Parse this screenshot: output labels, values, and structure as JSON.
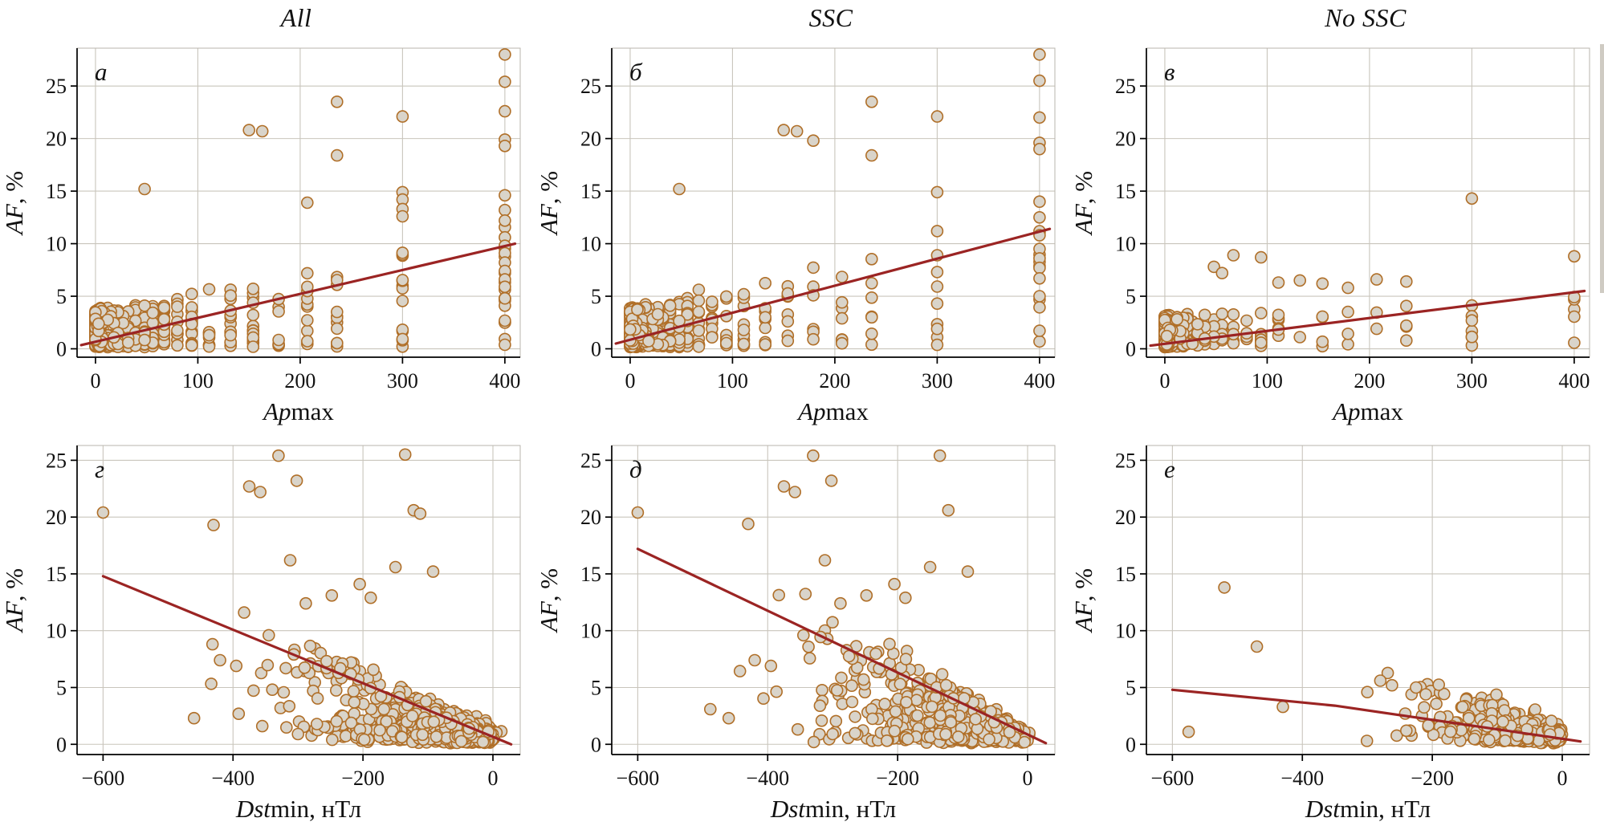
{
  "figure": {
    "col_titles": [
      "All",
      "SSC",
      "No SSC"
    ],
    "colors": {
      "marker_fill": "#d9d4ca",
      "marker_stroke": "#b06f28",
      "line": "#9b2423",
      "grid": "#c9c5bc",
      "frame": "#b9b5ad",
      "axis": "#000000"
    }
  },
  "chart_data": [
    {
      "type": "scatter",
      "panel_label": "а",
      "group": "All",
      "xlabel": "Apmax",
      "ylabel": "AF, %",
      "xlabel_parts": [
        {
          "text": "Ap",
          "italic": true
        },
        {
          "text": "max",
          "italic": false
        }
      ],
      "ylabel_parts": [
        {
          "text": "AF",
          "italic": true
        },
        {
          "text": ", %",
          "italic": false
        }
      ],
      "xlim": [
        -18,
        415
      ],
      "ylim": [
        -0.8,
        28.6
      ],
      "xticks": {
        "values": [
          0,
          100,
          200,
          300,
          400
        ],
        "labels": [
          "0",
          "100",
          "200",
          "300",
          "400"
        ]
      },
      "yticks": {
        "values": [
          0,
          5,
          10,
          15,
          20,
          25
        ],
        "labels": [
          "0",
          "5",
          "10",
          "15",
          "20",
          "25"
        ]
      },
      "grid": true,
      "regression": {
        "x": [
          -14,
          410
        ],
        "y": [
          0.35,
          10.0
        ]
      },
      "outlier_points": [
        [
          48,
          15.2
        ],
        [
          150,
          20.8
        ],
        [
          163,
          20.7
        ],
        [
          236,
          23.5
        ],
        [
          236,
          18.4
        ],
        [
          207,
          13.9
        ],
        [
          300,
          22.1
        ],
        [
          300,
          14.9
        ],
        [
          300,
          14.2
        ],
        [
          300,
          13.3
        ],
        [
          300,
          12.6
        ],
        [
          400,
          28.0
        ],
        [
          400,
          25.4
        ],
        [
          400,
          22.6
        ],
        [
          400,
          19.9
        ],
        [
          400,
          19.3
        ],
        [
          400,
          14.6
        ],
        [
          400,
          13.2
        ],
        [
          400,
          12.2
        ],
        [
          400,
          10.6
        ],
        [
          400,
          9.8
        ],
        [
          400,
          9.1
        ],
        [
          400,
          8.2
        ],
        [
          400,
          7.4
        ],
        [
          400,
          6.6
        ],
        [
          400,
          5.9
        ],
        [
          400,
          4.8
        ]
      ],
      "gen": {
        "kind": "ap",
        "seed": 101,
        "n": 700,
        "decay": 4.5,
        "floor": 0.185,
        "c0": 3.2,
        "c1": 0.021,
        "pow": 2.0,
        "noise": 0.3,
        "cap": 13.5,
        "xvals": [
          0,
          2,
          3,
          4,
          5,
          6,
          7,
          9,
          12,
          15,
          18,
          22,
          27,
          32,
          39,
          48,
          56,
          67,
          80,
          94,
          111,
          132,
          154,
          179,
          207,
          236,
          300,
          400
        ]
      }
    },
    {
      "type": "scatter",
      "panel_label": "б",
      "group": "SSC",
      "xlabel": "Apmax",
      "ylabel": "AF, %",
      "xlabel_parts": [
        {
          "text": "Ap",
          "italic": true
        },
        {
          "text": "max",
          "italic": false
        }
      ],
      "ylabel_parts": [
        {
          "text": "AF",
          "italic": true
        },
        {
          "text": ", %",
          "italic": false
        }
      ],
      "xlim": [
        -18,
        415
      ],
      "ylim": [
        -0.8,
        28.6
      ],
      "xticks": {
        "values": [
          0,
          100,
          200,
          300,
          400
        ],
        "labels": [
          "0",
          "100",
          "200",
          "300",
          "400"
        ]
      },
      "yticks": {
        "values": [
          0,
          5,
          10,
          15,
          20,
          25
        ],
        "labels": [
          "0",
          "5",
          "10",
          "15",
          "20",
          "25"
        ]
      },
      "grid": true,
      "regression": {
        "x": [
          -14,
          410
        ],
        "y": [
          0.5,
          11.4
        ]
      },
      "outlier_points": [
        [
          48,
          15.2
        ],
        [
          150,
          20.8
        ],
        [
          163,
          20.7
        ],
        [
          179,
          19.8
        ],
        [
          236,
          23.5
        ],
        [
          236,
          18.4
        ],
        [
          300,
          22.1
        ],
        [
          300,
          14.9
        ],
        [
          300,
          11.2
        ],
        [
          300,
          8.9
        ],
        [
          400,
          28.0
        ],
        [
          400,
          25.5
        ],
        [
          400,
          22.0
        ],
        [
          400,
          19.6
        ],
        [
          400,
          19.0
        ],
        [
          400,
          14.0
        ],
        [
          400,
          12.5
        ],
        [
          400,
          10.8
        ],
        [
          400,
          9.5
        ],
        [
          400,
          8.6
        ],
        [
          400,
          7.7
        ],
        [
          400,
          6.7
        ],
        [
          400,
          5.0
        ]
      ],
      "gen": {
        "kind": "ap",
        "seed": 202,
        "n": 560,
        "decay": 4.5,
        "floor": 0.2,
        "c0": 3.4,
        "c1": 0.023,
        "pow": 2.0,
        "noise": 0.3,
        "cap": 13.5,
        "xvals": [
          0,
          2,
          3,
          4,
          5,
          6,
          7,
          9,
          12,
          15,
          18,
          22,
          27,
          32,
          39,
          48,
          56,
          67,
          80,
          94,
          111,
          132,
          154,
          179,
          207,
          236,
          300,
          400
        ]
      }
    },
    {
      "type": "scatter",
      "panel_label": "в",
      "group": "No SSC",
      "xlabel": "Apmax",
      "ylabel": "AF, %",
      "xlabel_parts": [
        {
          "text": "Ap",
          "italic": true
        },
        {
          "text": "max",
          "italic": false
        }
      ],
      "ylabel_parts": [
        {
          "text": "AF",
          "italic": true
        },
        {
          "text": ", %",
          "italic": false
        }
      ],
      "xlim": [
        -18,
        415
      ],
      "ylim": [
        -0.8,
        28.6
      ],
      "xticks": {
        "values": [
          0,
          100,
          200,
          300,
          400
        ],
        "labels": [
          "0",
          "100",
          "200",
          "300",
          "400"
        ]
      },
      "yticks": {
        "values": [
          0,
          5,
          10,
          15,
          20,
          25
        ],
        "labels": [
          "0",
          "5",
          "10",
          "15",
          "20",
          "25"
        ]
      },
      "grid": true,
      "regression": {
        "x": [
          -14,
          410
        ],
        "y": [
          0.3,
          5.5
        ]
      },
      "outlier_points": [
        [
          300,
          14.3
        ],
        [
          400,
          8.8
        ],
        [
          94,
          8.7
        ],
        [
          67,
          8.9
        ],
        [
          48,
          7.8
        ],
        [
          56,
          7.2
        ],
        [
          132,
          6.5
        ],
        [
          111,
          6.3
        ],
        [
          154,
          6.2
        ],
        [
          179,
          5.8
        ],
        [
          207,
          6.6
        ],
        [
          236,
          6.4
        ],
        [
          300,
          3.1
        ],
        [
          300,
          2.7
        ],
        [
          236,
          2.2
        ],
        [
          207,
          1.9
        ]
      ],
      "gen": {
        "kind": "ap",
        "seed": 303,
        "n": 430,
        "decay": 4.0,
        "floor": 0.05,
        "c0": 2.6,
        "c1": 0.006,
        "pow": 1.9,
        "noise": 0.3,
        "cap": 7.0,
        "xvals": [
          0,
          2,
          3,
          4,
          5,
          6,
          7,
          9,
          12,
          15,
          18,
          22,
          27,
          32,
          39,
          48,
          56,
          67,
          80,
          94,
          111,
          132,
          154,
          179,
          207,
          236,
          300,
          400
        ]
      }
    },
    {
      "type": "scatter",
      "panel_label": "г",
      "group": "All",
      "xlabel": "Dstmin, нТл",
      "ylabel": "AF, %",
      "xlabel_parts": [
        {
          "text": "Dst",
          "italic": true
        },
        {
          "text": "min, нТл",
          "italic": false
        }
      ],
      "ylabel_parts": [
        {
          "text": "AF",
          "italic": true
        },
        {
          "text": ", %",
          "italic": false
        }
      ],
      "xlim": [
        -640,
        42
      ],
      "ylim": [
        -0.9,
        26.3
      ],
      "xticks": {
        "values": [
          -600,
          -400,
          -200,
          0
        ],
        "labels": [
          "−600",
          "−400",
          "−200",
          "0"
        ]
      },
      "yticks": {
        "values": [
          0,
          5,
          10,
          15,
          20,
          25
        ],
        "labels": [
          "0",
          "5",
          "10",
          "15",
          "20",
          "25"
        ]
      },
      "grid": true,
      "regression": {
        "x": [
          -600,
          28
        ],
        "y": [
          14.8,
          0.0
        ]
      },
      "outlier_points": [
        [
          -600,
          20.4
        ],
        [
          -430,
          19.3
        ],
        [
          -375,
          22.7
        ],
        [
          -358,
          22.2
        ],
        [
          -330,
          25.4
        ],
        [
          -302,
          23.2
        ],
        [
          -135,
          25.5
        ],
        [
          -122,
          20.6
        ],
        [
          -112,
          20.3
        ],
        [
          -150,
          15.6
        ],
        [
          -92,
          15.2
        ],
        [
          -248,
          13.1
        ],
        [
          -312,
          16.2
        ],
        [
          -288,
          12.4
        ],
        [
          -205,
          14.1
        ],
        [
          -188,
          12.9
        ],
        [
          -345,
          9.6
        ],
        [
          -395,
          6.9
        ],
        [
          -420,
          7.4
        ],
        [
          -460,
          2.3
        ],
        [
          -355,
          1.6
        ],
        [
          -300,
          0.9
        ]
      ],
      "gen": {
        "kind": "dst",
        "seed": 404,
        "n": 850,
        "sigma": 95,
        "tail_p": 0.1,
        "tail": 260,
        "k": 0.03,
        "pow": 1.7,
        "noise": 0.5,
        "cap": 12.5,
        "xmin": -612,
        "xmax": 22
      }
    },
    {
      "type": "scatter",
      "panel_label": "д",
      "group": "SSC",
      "xlabel": "Dstmin, нТл",
      "ylabel": "AF, %",
      "xlabel_parts": [
        {
          "text": "Dst",
          "italic": true
        },
        {
          "text": "min, нТл",
          "italic": false
        }
      ],
      "ylabel_parts": [
        {
          "text": "AF",
          "italic": true
        },
        {
          "text": ", %",
          "italic": false
        }
      ],
      "xlim": [
        -640,
        42
      ],
      "ylim": [
        -0.9,
        26.3
      ],
      "xticks": {
        "values": [
          -600,
          -400,
          -200,
          0
        ],
        "labels": [
          "−600",
          "−400",
          "−200",
          "0"
        ]
      },
      "yticks": {
        "values": [
          0,
          5,
          10,
          15,
          20,
          25
        ],
        "labels": [
          "0",
          "5",
          "10",
          "15",
          "20",
          "25"
        ]
      },
      "grid": true,
      "regression": {
        "x": [
          -600,
          28
        ],
        "y": [
          17.2,
          0.1
        ]
      },
      "outlier_points": [
        [
          -600,
          20.4
        ],
        [
          -430,
          19.4
        ],
        [
          -375,
          22.7
        ],
        [
          -358,
          22.2
        ],
        [
          -330,
          25.4
        ],
        [
          -302,
          23.2
        ],
        [
          -135,
          25.4
        ],
        [
          -122,
          20.6
        ],
        [
          -150,
          15.6
        ],
        [
          -92,
          15.2
        ],
        [
          -248,
          13.1
        ],
        [
          -312,
          16.2
        ],
        [
          -288,
          12.4
        ],
        [
          -205,
          14.1
        ],
        [
          -188,
          12.9
        ],
        [
          -345,
          9.6
        ],
        [
          -395,
          6.9
        ],
        [
          -420,
          7.4
        ],
        [
          -460,
          2.3
        ],
        [
          -300,
          0.9
        ]
      ],
      "gen": {
        "kind": "dst",
        "seed": 505,
        "n": 720,
        "sigma": 105,
        "tail_p": 0.12,
        "tail": 280,
        "k": 0.036,
        "pow": 1.7,
        "noise": 0.5,
        "cap": 14.0,
        "xmin": -612,
        "xmax": 22
      }
    },
    {
      "type": "scatter",
      "panel_label": "е",
      "group": "No SSC",
      "xlabel": "Dstmin, нТл",
      "ylabel": "AF, %",
      "xlabel_parts": [
        {
          "text": "Dst",
          "italic": true
        },
        {
          "text": "min, нТл",
          "italic": false
        }
      ],
      "ylabel_parts": [
        {
          "text": "AF",
          "italic": true
        },
        {
          "text": ", %",
          "italic": false
        }
      ],
      "xlim": [
        -640,
        42
      ],
      "ylim": [
        -0.9,
        26.3
      ],
      "xticks": {
        "values": [
          -600,
          -400,
          -200,
          0
        ],
        "labels": [
          "−600",
          "−400",
          "−200",
          "0"
        ]
      },
      "yticks": {
        "values": [
          0,
          5,
          10,
          15,
          20,
          25
        ],
        "labels": [
          "0",
          "5",
          "10",
          "15",
          "20",
          "25"
        ]
      },
      "grid": true,
      "regression": {
        "x": [
          -600,
          -350,
          28
        ],
        "y": [
          4.8,
          3.4,
          0.25
        ]
      },
      "outlier_points": [
        [
          -520,
          13.8
        ],
        [
          -470,
          8.6
        ],
        [
          -430,
          3.3
        ],
        [
          -575,
          1.1
        ],
        [
          -300,
          4.6
        ],
        [
          -280,
          5.6
        ],
        [
          -262,
          5.2
        ],
        [
          -240,
          1.2
        ],
        [
          -225,
          5.0
        ],
        [
          -210,
          4.4
        ]
      ],
      "gen": {
        "kind": "dst",
        "seed": 606,
        "n": 500,
        "sigma": 80,
        "tail_p": 0.05,
        "tail": 200,
        "k": 0.022,
        "pow": 1.6,
        "noise": 0.6,
        "cap": 7.0,
        "xmin": -612,
        "xmax": 22
      }
    }
  ]
}
